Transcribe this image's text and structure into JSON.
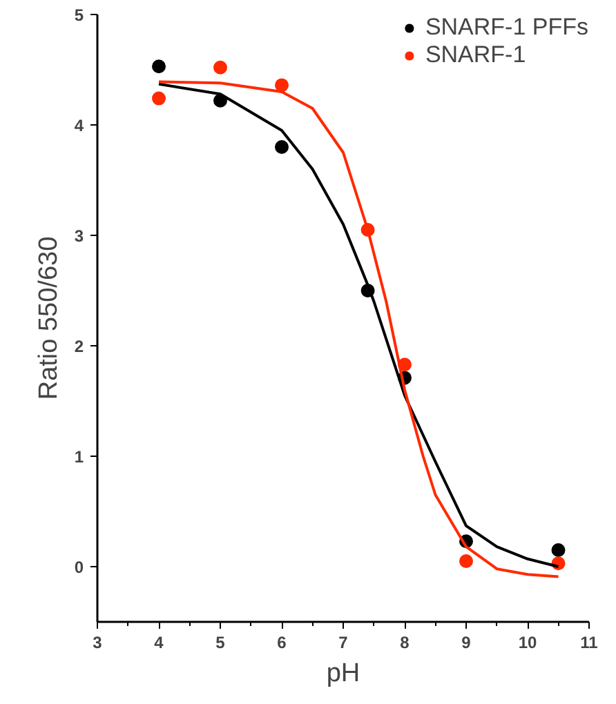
{
  "chart_data": {
    "type": "scatter",
    "xlabel": "pH",
    "ylabel": "Ratio 550/630",
    "xlim": [
      3,
      11
    ],
    "ylim": [
      -0.5,
      5
    ],
    "xticks": [
      3,
      4,
      5,
      6,
      7,
      8,
      9,
      10,
      11
    ],
    "yticks": [
      0,
      1,
      2,
      3,
      4,
      5
    ],
    "grid": false,
    "legend": "top right",
    "series": [
      {
        "name": "SNARF-1 PFFs",
        "marker": "circle",
        "color": "#000000",
        "x": [
          4,
          5,
          6,
          7.4,
          8,
          9,
          10.5
        ],
        "values": [
          4.53,
          4.22,
          3.8,
          2.5,
          1.71,
          0.23,
          0.15
        ]
      },
      {
        "name": "SNARF-1",
        "marker": "circle",
        "color": "#ff2a00",
        "x": [
          4,
          5,
          6,
          7.4,
          8,
          9,
          10.5
        ],
        "values": [
          4.24,
          4.52,
          4.36,
          3.05,
          1.83,
          0.05,
          0.03
        ]
      },
      {
        "type": "line",
        "marker": "none",
        "color": "#000000",
        "x": [
          4,
          5,
          6,
          6.5,
          7,
          7.4,
          7.5,
          8,
          8.5,
          9,
          9.5,
          10,
          10.5
        ],
        "values": [
          4.37,
          4.28,
          3.95,
          3.6,
          3.1,
          2.55,
          2.4,
          1.55,
          0.95,
          0.37,
          0.18,
          0.07,
          0.0
        ]
      },
      {
        "type": "line",
        "marker": "none",
        "color": "#ff2a00",
        "x": [
          4,
          5,
          6,
          6.5,
          7,
          7.4,
          7.7,
          8,
          8.3,
          8.5,
          9,
          9.5,
          10,
          10.5
        ],
        "values": [
          4.39,
          4.38,
          4.3,
          4.15,
          3.75,
          3.05,
          2.4,
          1.6,
          1.0,
          0.65,
          0.18,
          -0.02,
          -0.07,
          -0.09
        ]
      }
    ]
  }
}
